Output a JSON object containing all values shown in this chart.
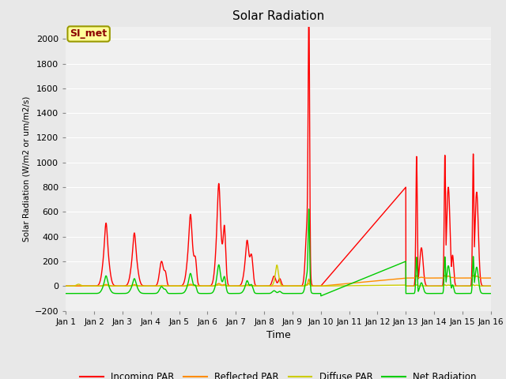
{
  "title": "Solar Radiation",
  "xlabel": "Time",
  "ylabel": "Solar Radiation (W/m2 or um/m2/s)",
  "ylim": [
    -200,
    2100
  ],
  "yticks": [
    -200,
    0,
    200,
    400,
    600,
    800,
    1000,
    1200,
    1400,
    1600,
    1800,
    2000
  ],
  "xlim": [
    0,
    15
  ],
  "xtick_labels": [
    "Jan 1",
    "Jan 2",
    "Jan 3",
    "Jan 4",
    "Jan 5",
    "Jan 6",
    "Jan 7",
    "Jan 8",
    "Jan 9",
    "Jan 10",
    "Jan 11",
    "Jan 12",
    "Jan 13",
    "Jan 14",
    "Jan 15",
    "Jan 16"
  ],
  "annotation_text": "SI_met",
  "annotation_box_facecolor": "#ffff99",
  "annotation_box_edgecolor": "#999900",
  "annotation_text_color": "#8b0000",
  "colors": {
    "incoming": "#ff0000",
    "reflected": "#ff8c00",
    "diffuse": "#cccc00",
    "net": "#00cc00"
  },
  "legend_labels": [
    "Incoming PAR",
    "Reflected PAR",
    "Diffuse PAR",
    "Net Radiation"
  ],
  "fig_facecolor": "#e8e8e8",
  "ax_facecolor": "#f0f0f0",
  "grid_color": "#ffffff",
  "linewidth": 1.0
}
